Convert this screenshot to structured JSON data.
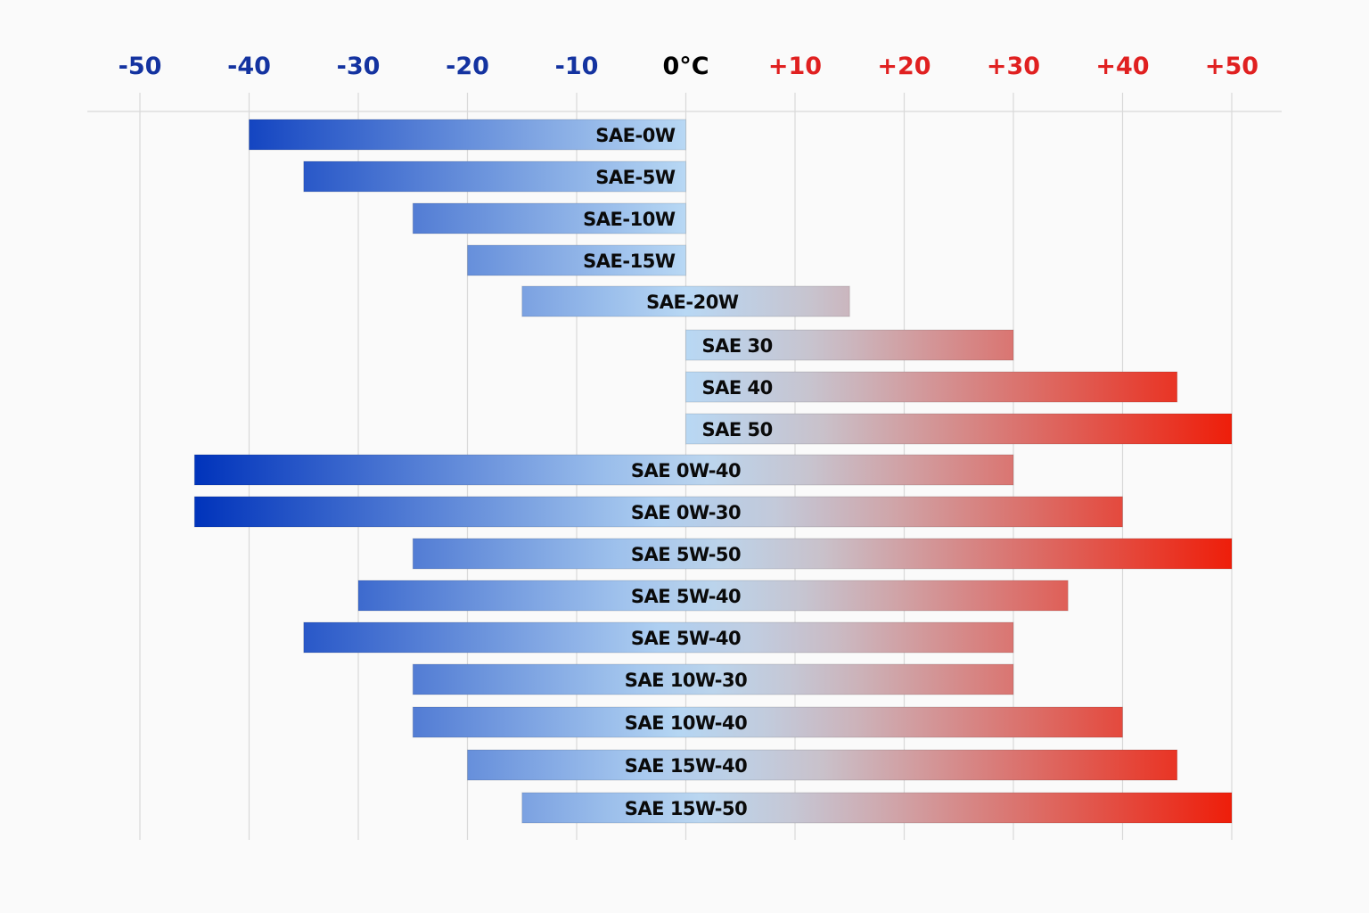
{
  "chart_data": {
    "type": "bar",
    "orientation": "horizontal-range",
    "title": "",
    "xlabel": "",
    "ylabel": "",
    "xlim": [
      -50,
      50
    ],
    "grid": true,
    "x_ticks": [
      {
        "value": -50,
        "label": "-50",
        "color": "#1433a0"
      },
      {
        "value": -40,
        "label": "-40",
        "color": "#1433a0"
      },
      {
        "value": -30,
        "label": "-30",
        "color": "#1433a0"
      },
      {
        "value": -20,
        "label": "-20",
        "color": "#1433a0"
      },
      {
        "value": -10,
        "label": "-10",
        "color": "#1433a0"
      },
      {
        "value": 0,
        "label": "0°C",
        "color": "#000000"
      },
      {
        "value": 10,
        "label": "+10",
        "color": "#e02020"
      },
      {
        "value": 20,
        "label": "+20",
        "color": "#e02020"
      },
      {
        "value": 30,
        "label": "+30",
        "color": "#e02020"
      },
      {
        "value": 40,
        "label": "+40",
        "color": "#e02020"
      },
      {
        "value": 50,
        "label": "+50",
        "color": "#e02020"
      }
    ],
    "colors": {
      "cold": "#0033bb",
      "neutral": "#b8d8f4",
      "hot": "#ee1e0a"
    },
    "series": [
      {
        "name": "SAE-0W",
        "min": -40,
        "max": 0,
        "label_align": "end"
      },
      {
        "name": "SAE-5W",
        "min": -35,
        "max": 0,
        "label_align": "end"
      },
      {
        "name": "SAE-10W",
        "min": -25,
        "max": 0,
        "label_align": "end"
      },
      {
        "name": "SAE-15W",
        "min": -20,
        "max": 0,
        "label_align": "end"
      },
      {
        "name": "SAE-20W",
        "min": -15,
        "max": 15,
        "label_align": "middle"
      },
      {
        "name": "SAE 30",
        "min": 0,
        "max": 30,
        "label_align": "start"
      },
      {
        "name": "SAE 40",
        "min": 0,
        "max": 45,
        "label_align": "start"
      },
      {
        "name": "SAE 50",
        "min": 0,
        "max": 50,
        "label_align": "start"
      },
      {
        "name": "SAE 0W-40",
        "min": -45,
        "max": 30,
        "label_align": "middle"
      },
      {
        "name": "SAE 0W-30",
        "min": -45,
        "max": 40,
        "label_align": "middle"
      },
      {
        "name": "SAE 5W-50",
        "min": -25,
        "max": 50,
        "label_align": "middle"
      },
      {
        "name": "SAE 5W-40",
        "min": -30,
        "max": 35,
        "label_align": "middle"
      },
      {
        "name": "SAE 5W-40",
        "min": -35,
        "max": 30,
        "label_align": "middle"
      },
      {
        "name": "SAE 10W-30",
        "min": -25,
        "max": 30,
        "label_align": "middle"
      },
      {
        "name": "SAE 10W-40",
        "min": -25,
        "max": 40,
        "label_align": "middle"
      },
      {
        "name": "SAE 15W-40",
        "min": -20,
        "max": 45,
        "label_align": "middle"
      },
      {
        "name": "SAE 15W-50",
        "min": -15,
        "max": 50,
        "label_align": "middle"
      }
    ]
  }
}
